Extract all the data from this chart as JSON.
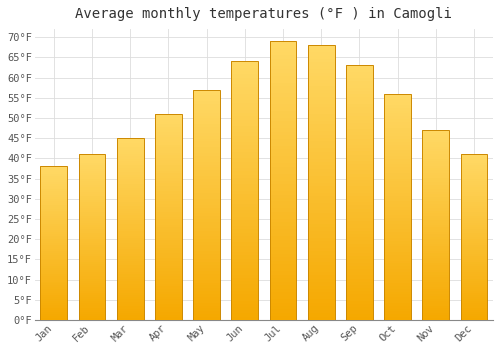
{
  "title": "Average monthly temperatures (°F ) in Camogli",
  "months": [
    "Jan",
    "Feb",
    "Mar",
    "Apr",
    "May",
    "Jun",
    "Jul",
    "Aug",
    "Sep",
    "Oct",
    "Nov",
    "Dec"
  ],
  "values": [
    38,
    41,
    45,
    51,
    57,
    64,
    69,
    68,
    63,
    56,
    47,
    41
  ],
  "bar_color_bottom": "#F5A800",
  "bar_color_top": "#FFD966",
  "bar_edge_color": "#CC8800",
  "ylim": [
    0,
    72
  ],
  "yticks": [
    0,
    5,
    10,
    15,
    20,
    25,
    30,
    35,
    40,
    45,
    50,
    55,
    60,
    65,
    70
  ],
  "ytick_labels": [
    "0°F",
    "5°F",
    "10°F",
    "15°F",
    "20°F",
    "25°F",
    "30°F",
    "35°F",
    "40°F",
    "45°F",
    "50°F",
    "55°F",
    "60°F",
    "65°F",
    "70°F"
  ],
  "background_color": "#FFFFFF",
  "grid_color": "#DDDDDD",
  "title_fontsize": 10,
  "tick_fontsize": 7.5,
  "font_family": "monospace",
  "bar_width": 0.7,
  "gradient_steps": 80
}
